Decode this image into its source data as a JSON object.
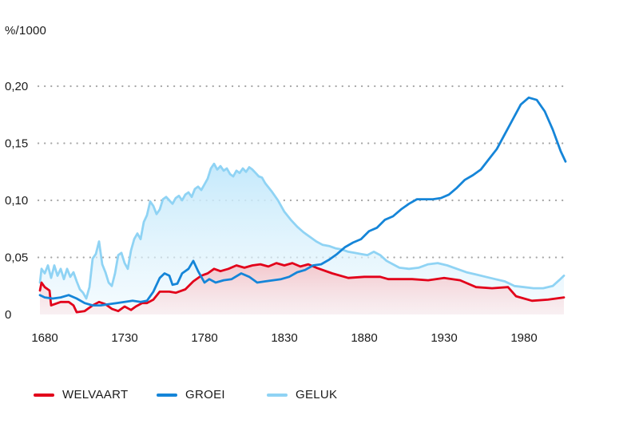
{
  "chart_data": {
    "type": "line",
    "unit_label": "%/1000",
    "title": "",
    "xlabel": "",
    "ylabel": "%/1000",
    "xlim": [
      1674,
      2008
    ],
    "ylim": [
      0,
      0.2
    ],
    "x_ticks": [
      1680,
      1730,
      1780,
      1830,
      1880,
      1930,
      1980
    ],
    "x_tick_labels": [
      "1680",
      "1730",
      "1780",
      "1830",
      "1880",
      "1930",
      "1980"
    ],
    "y_ticks": [
      0,
      0.05,
      0.1,
      0.15,
      0.2
    ],
    "y_tick_labels": [
      "0",
      "0,05",
      "0,10",
      "0,15",
      "0,20"
    ],
    "grid": "dotted-horizontal",
    "legend_position": "bottom",
    "series": [
      {
        "name": "WELVAART",
        "color": "#e2001a",
        "fill": "red-gradient",
        "points": [
          [
            1677,
            0.021
          ],
          [
            1678,
            0.028
          ],
          [
            1680,
            0.024
          ],
          [
            1683,
            0.021
          ],
          [
            1684,
            0.008
          ],
          [
            1690,
            0.011
          ],
          [
            1695,
            0.011
          ],
          [
            1698,
            0.008
          ],
          [
            1700,
            0.002
          ],
          [
            1705,
            0.003
          ],
          [
            1710,
            0.008
          ],
          [
            1714,
            0.011
          ],
          [
            1718,
            0.009
          ],
          [
            1722,
            0.005
          ],
          [
            1726,
            0.003
          ],
          [
            1730,
            0.007
          ],
          [
            1734,
            0.004
          ],
          [
            1737,
            0.007
          ],
          [
            1741,
            0.01
          ],
          [
            1744,
            0.01
          ],
          [
            1748,
            0.013
          ],
          [
            1752,
            0.02
          ],
          [
            1758,
            0.02
          ],
          [
            1762,
            0.019
          ],
          [
            1768,
            0.022
          ],
          [
            1773,
            0.029
          ],
          [
            1778,
            0.034
          ],
          [
            1782,
            0.036
          ],
          [
            1786,
            0.04
          ],
          [
            1790,
            0.038
          ],
          [
            1795,
            0.04
          ],
          [
            1800,
            0.043
          ],
          [
            1805,
            0.041
          ],
          [
            1810,
            0.043
          ],
          [
            1815,
            0.044
          ],
          [
            1820,
            0.042
          ],
          [
            1825,
            0.045
          ],
          [
            1830,
            0.043
          ],
          [
            1835,
            0.045
          ],
          [
            1840,
            0.042
          ],
          [
            1845,
            0.044
          ],
          [
            1850,
            0.041
          ],
          [
            1860,
            0.036
          ],
          [
            1870,
            0.032
          ],
          [
            1880,
            0.033
          ],
          [
            1890,
            0.033
          ],
          [
            1895,
            0.031
          ],
          [
            1900,
            0.031
          ],
          [
            1910,
            0.031
          ],
          [
            1920,
            0.03
          ],
          [
            1930,
            0.032
          ],
          [
            1940,
            0.03
          ],
          [
            1950,
            0.024
          ],
          [
            1960,
            0.023
          ],
          [
            1970,
            0.024
          ],
          [
            1975,
            0.016
          ],
          [
            1985,
            0.012
          ],
          [
            1995,
            0.013
          ],
          [
            2005,
            0.015
          ]
        ]
      },
      {
        "name": "GROEI",
        "color": "#1585d8",
        "fill": "none",
        "points": [
          [
            1677,
            0.017
          ],
          [
            1680,
            0.015
          ],
          [
            1685,
            0.014
          ],
          [
            1690,
            0.015
          ],
          [
            1695,
            0.017
          ],
          [
            1700,
            0.014
          ],
          [
            1705,
            0.01
          ],
          [
            1710,
            0.008
          ],
          [
            1715,
            0.008
          ],
          [
            1720,
            0.009
          ],
          [
            1725,
            0.01
          ],
          [
            1730,
            0.011
          ],
          [
            1735,
            0.012
          ],
          [
            1740,
            0.011
          ],
          [
            1744,
            0.012
          ],
          [
            1748,
            0.02
          ],
          [
            1752,
            0.032
          ],
          [
            1755,
            0.036
          ],
          [
            1758,
            0.034
          ],
          [
            1760,
            0.026
          ],
          [
            1763,
            0.027
          ],
          [
            1766,
            0.036
          ],
          [
            1770,
            0.04
          ],
          [
            1773,
            0.047
          ],
          [
            1776,
            0.038
          ],
          [
            1780,
            0.028
          ],
          [
            1783,
            0.031
          ],
          [
            1787,
            0.028
          ],
          [
            1792,
            0.03
          ],
          [
            1797,
            0.031
          ],
          [
            1803,
            0.036
          ],
          [
            1808,
            0.033
          ],
          [
            1813,
            0.028
          ],
          [
            1818,
            0.029
          ],
          [
            1823,
            0.03
          ],
          [
            1828,
            0.031
          ],
          [
            1833,
            0.033
          ],
          [
            1838,
            0.037
          ],
          [
            1843,
            0.039
          ],
          [
            1848,
            0.043
          ],
          [
            1853,
            0.044
          ],
          [
            1858,
            0.048
          ],
          [
            1863,
            0.053
          ],
          [
            1868,
            0.059
          ],
          [
            1873,
            0.063
          ],
          [
            1878,
            0.066
          ],
          [
            1883,
            0.073
          ],
          [
            1888,
            0.076
          ],
          [
            1893,
            0.083
          ],
          [
            1898,
            0.086
          ],
          [
            1903,
            0.092
          ],
          [
            1908,
            0.097
          ],
          [
            1913,
            0.101
          ],
          [
            1918,
            0.101
          ],
          [
            1923,
            0.101
          ],
          [
            1928,
            0.102
          ],
          [
            1933,
            0.105
          ],
          [
            1938,
            0.111
          ],
          [
            1943,
            0.118
          ],
          [
            1948,
            0.122
          ],
          [
            1953,
            0.127
          ],
          [
            1958,
            0.136
          ],
          [
            1963,
            0.145
          ],
          [
            1968,
            0.158
          ],
          [
            1973,
            0.171
          ],
          [
            1978,
            0.184
          ],
          [
            1983,
            0.19
          ],
          [
            1988,
            0.188
          ],
          [
            1993,
            0.178
          ],
          [
            1998,
            0.162
          ],
          [
            2003,
            0.143
          ],
          [
            2006,
            0.134
          ]
        ]
      },
      {
        "name": "GELUK",
        "color": "#8fd3f4",
        "fill": "blue-gradient",
        "points": [
          [
            1677,
            0.028
          ],
          [
            1678,
            0.04
          ],
          [
            1680,
            0.036
          ],
          [
            1682,
            0.043
          ],
          [
            1684,
            0.032
          ],
          [
            1686,
            0.043
          ],
          [
            1688,
            0.034
          ],
          [
            1690,
            0.04
          ],
          [
            1692,
            0.031
          ],
          [
            1694,
            0.04
          ],
          [
            1696,
            0.033
          ],
          [
            1698,
            0.037
          ],
          [
            1700,
            0.029
          ],
          [
            1702,
            0.022
          ],
          [
            1704,
            0.019
          ],
          [
            1706,
            0.014
          ],
          [
            1708,
            0.024
          ],
          [
            1710,
            0.049
          ],
          [
            1712,
            0.053
          ],
          [
            1714,
            0.064
          ],
          [
            1716,
            0.044
          ],
          [
            1718,
            0.037
          ],
          [
            1720,
            0.028
          ],
          [
            1722,
            0.025
          ],
          [
            1724,
            0.036
          ],
          [
            1726,
            0.052
          ],
          [
            1728,
            0.054
          ],
          [
            1730,
            0.045
          ],
          [
            1732,
            0.04
          ],
          [
            1734,
            0.056
          ],
          [
            1736,
            0.066
          ],
          [
            1738,
            0.071
          ],
          [
            1740,
            0.066
          ],
          [
            1742,
            0.081
          ],
          [
            1744,
            0.087
          ],
          [
            1746,
            0.099
          ],
          [
            1748,
            0.095
          ],
          [
            1750,
            0.088
          ],
          [
            1752,
            0.092
          ],
          [
            1754,
            0.101
          ],
          [
            1756,
            0.103
          ],
          [
            1758,
            0.1
          ],
          [
            1760,
            0.097
          ],
          [
            1762,
            0.102
          ],
          [
            1764,
            0.104
          ],
          [
            1766,
            0.1
          ],
          [
            1768,
            0.105
          ],
          [
            1770,
            0.107
          ],
          [
            1772,
            0.103
          ],
          [
            1774,
            0.11
          ],
          [
            1776,
            0.112
          ],
          [
            1778,
            0.109
          ],
          [
            1780,
            0.114
          ],
          [
            1782,
            0.119
          ],
          [
            1784,
            0.128
          ],
          [
            1786,
            0.132
          ],
          [
            1788,
            0.127
          ],
          [
            1790,
            0.13
          ],
          [
            1792,
            0.126
          ],
          [
            1794,
            0.128
          ],
          [
            1796,
            0.123
          ],
          [
            1798,
            0.121
          ],
          [
            1800,
            0.126
          ],
          [
            1802,
            0.124
          ],
          [
            1804,
            0.128
          ],
          [
            1806,
            0.125
          ],
          [
            1808,
            0.129
          ],
          [
            1810,
            0.127
          ],
          [
            1812,
            0.124
          ],
          [
            1814,
            0.121
          ],
          [
            1816,
            0.12
          ],
          [
            1818,
            0.115
          ],
          [
            1822,
            0.108
          ],
          [
            1826,
            0.1
          ],
          [
            1830,
            0.09
          ],
          [
            1834,
            0.083
          ],
          [
            1838,
            0.077
          ],
          [
            1842,
            0.072
          ],
          [
            1846,
            0.068
          ],
          [
            1850,
            0.064
          ],
          [
            1854,
            0.061
          ],
          [
            1858,
            0.06
          ],
          [
            1862,
            0.058
          ],
          [
            1866,
            0.057
          ],
          [
            1870,
            0.055
          ],
          [
            1874,
            0.054
          ],
          [
            1878,
            0.053
          ],
          [
            1882,
            0.052
          ],
          [
            1886,
            0.055
          ],
          [
            1890,
            0.052
          ],
          [
            1894,
            0.047
          ],
          [
            1898,
            0.044
          ],
          [
            1902,
            0.041
          ],
          [
            1908,
            0.04
          ],
          [
            1914,
            0.041
          ],
          [
            1920,
            0.044
          ],
          [
            1926,
            0.045
          ],
          [
            1932,
            0.043
          ],
          [
            1938,
            0.04
          ],
          [
            1944,
            0.037
          ],
          [
            1950,
            0.035
          ],
          [
            1956,
            0.033
          ],
          [
            1962,
            0.031
          ],
          [
            1968,
            0.029
          ],
          [
            1974,
            0.025
          ],
          [
            1980,
            0.024
          ],
          [
            1986,
            0.023
          ],
          [
            1992,
            0.023
          ],
          [
            1998,
            0.025
          ],
          [
            2002,
            0.03
          ],
          [
            2005,
            0.034
          ]
        ]
      }
    ]
  }
}
